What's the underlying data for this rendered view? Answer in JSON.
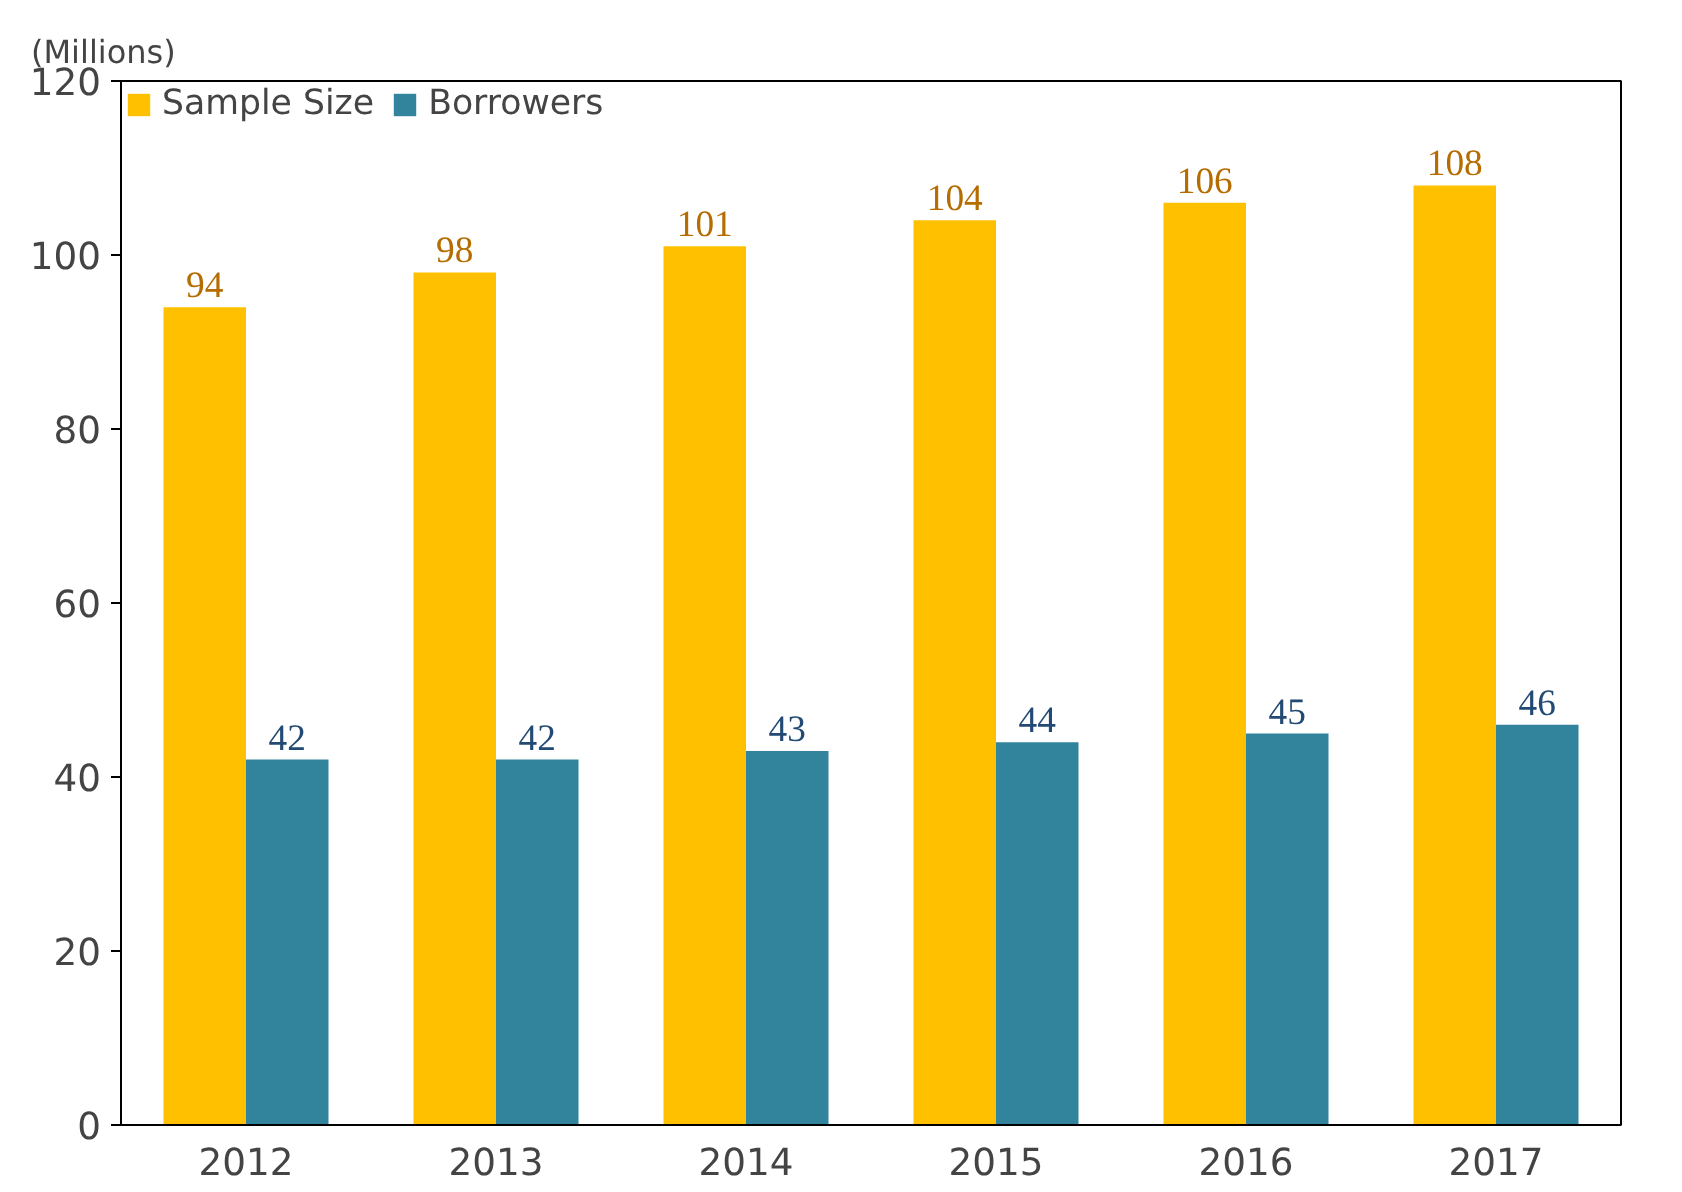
{
  "chart_data": {
    "type": "bar",
    "ylabel": "(Millions)",
    "categories": [
      "2012",
      "2013",
      "2014",
      "2015",
      "2016",
      "2017"
    ],
    "series": [
      {
        "name": "Sample Size",
        "color": "#ffc000",
        "values": [
          94,
          98,
          101,
          104,
          106,
          108
        ]
      },
      {
        "name": "Borrowers",
        "color": "#31849b",
        "values": [
          42,
          42,
          43,
          44,
          45,
          46
        ]
      }
    ],
    "ylim": [
      0,
      120
    ],
    "yticks": [
      0,
      20,
      40,
      60,
      80,
      100,
      120
    ],
    "data_labels": true,
    "legend": "top left",
    "grid": false
  }
}
